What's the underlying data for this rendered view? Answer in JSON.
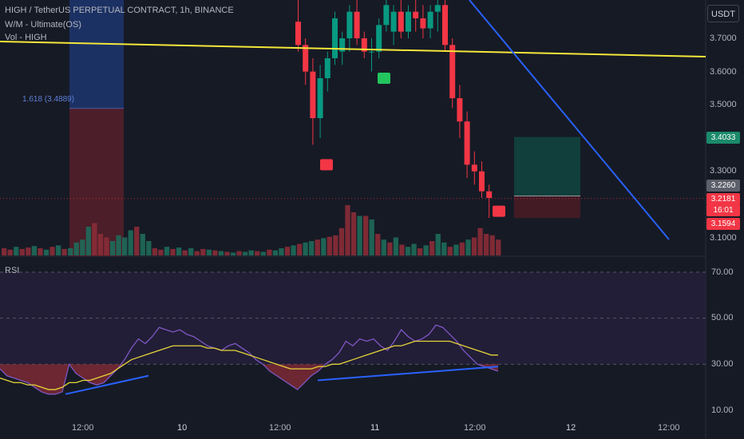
{
  "legend": {
    "symbol_line": "HIGH / TetherUS PERPETUAL CONTRACT, 1h, BINANCE",
    "indicator_1": "W/M - Ultimate(OS)",
    "indicator_2": "Vol - HIGH"
  },
  "currency_button": "USDT",
  "fib_label": "1.618 (3.4889)",
  "price_axis": {
    "ticks": [
      "3.7000",
      "3.6000",
      "3.5000",
      "3.3000",
      "3.1000"
    ],
    "tags": [
      {
        "text": "3.4033",
        "color": "#1b8a6b"
      },
      {
        "text": "3.2260",
        "color": "#5d606b"
      },
      {
        "text": "3.2181",
        "color": "#f23645"
      },
      {
        "text": "16:01",
        "color": "#f23645"
      },
      {
        "text": "3.1594",
        "color": "#f23645"
      }
    ]
  },
  "rsi": {
    "title": "RSI",
    "ticks": [
      "70.00",
      "50.00",
      "30.00",
      "10.00"
    ]
  },
  "time_axis": {
    "labels": [
      "12:00",
      "10",
      "12:00",
      "11",
      "12:00",
      "12",
      "12:00"
    ]
  },
  "colors": {
    "background": "#161a25",
    "bull": "#089981",
    "bear": "#f23645",
    "trendline_yellow": "#f5e73a",
    "trendline_blue": "#2962ff",
    "rsi_line": "#7e57c2",
    "rsi_ma": "#e6d43a"
  },
  "chart_data": [
    {
      "type": "candlestick",
      "title": "HIGH / TetherUS PERPETUAL CONTRACT, 1h, BINANCE",
      "y_range": [
        3.07,
        3.82
      ],
      "price_levels": {
        "current": 3.2181,
        "target_zone_top": 3.4033,
        "entry": 3.226,
        "stop": 3.1594,
        "fib_1618": 3.4889
      },
      "candles_ohlc": [
        [
          3.75,
          3.82,
          3.66,
          3.68
        ],
        [
          3.68,
          3.7,
          3.56,
          3.6
        ],
        [
          3.6,
          3.64,
          3.38,
          3.46
        ],
        [
          3.46,
          3.62,
          3.4,
          3.58
        ],
        [
          3.58,
          3.66,
          3.54,
          3.64
        ],
        [
          3.64,
          3.78,
          3.62,
          3.76
        ],
        [
          3.66,
          3.72,
          3.62,
          3.7
        ],
        [
          3.7,
          3.8,
          3.66,
          3.78
        ],
        [
          3.78,
          3.82,
          3.68,
          3.7
        ],
        [
          3.7,
          3.72,
          3.64,
          3.66
        ],
        [
          3.66,
          3.7,
          3.6,
          3.66
        ],
        [
          3.66,
          3.76,
          3.64,
          3.74
        ],
        [
          3.74,
          3.82,
          3.72,
          3.8
        ],
        [
          3.72,
          3.8,
          3.68,
          3.78
        ],
        [
          3.78,
          3.82,
          3.7,
          3.72
        ],
        [
          3.72,
          3.8,
          3.7,
          3.78
        ],
        [
          3.78,
          3.82,
          3.72,
          3.76
        ],
        [
          3.76,
          3.8,
          3.7,
          3.73
        ],
        [
          3.73,
          3.8,
          3.7,
          3.78
        ],
        [
          3.78,
          3.82,
          3.72,
          3.8
        ],
        [
          3.8,
          3.82,
          3.66,
          3.68
        ],
        [
          3.68,
          3.7,
          3.49,
          3.52
        ],
        [
          3.52,
          3.56,
          3.4,
          3.45
        ],
        [
          3.45,
          3.48,
          3.28,
          3.32
        ],
        [
          3.32,
          3.36,
          3.26,
          3.3
        ],
        [
          3.3,
          3.33,
          3.22,
          3.24
        ],
        [
          3.24,
          3.26,
          3.16,
          3.22
        ]
      ],
      "signals": [
        {
          "type": "sell",
          "price": 3.32
        },
        {
          "type": "buy",
          "price": 3.58
        },
        {
          "type": "sell",
          "price": 3.18
        }
      ],
      "volume": [
        [
          0.1,
          0
        ],
        [
          0.08,
          0
        ],
        [
          0.12,
          1
        ],
        [
          0.09,
          0
        ],
        [
          0.11,
          0
        ],
        [
          0.13,
          1
        ],
        [
          0.1,
          0
        ],
        [
          0.08,
          1
        ],
        [
          0.12,
          0
        ],
        [
          0.14,
          1
        ],
        [
          0.09,
          0
        ],
        [
          0.1,
          1
        ],
        [
          0.18,
          1
        ],
        [
          0.22,
          1
        ],
        [
          0.4,
          1
        ],
        [
          0.45,
          0
        ],
        [
          0.3,
          0
        ],
        [
          0.25,
          0
        ],
        [
          0.2,
          1
        ],
        [
          0.28,
          1
        ],
        [
          0.25,
          1
        ],
        [
          0.35,
          1
        ],
        [
          0.4,
          0
        ],
        [
          0.3,
          1
        ],
        [
          0.2,
          1
        ],
        [
          0.1,
          0
        ],
        [
          0.08,
          0
        ],
        [
          0.12,
          1
        ],
        [
          0.09,
          0
        ],
        [
          0.11,
          1
        ],
        [
          0.07,
          0
        ],
        [
          0.1,
          1
        ],
        [
          0.06,
          0
        ],
        [
          0.09,
          0
        ],
        [
          0.08,
          1
        ],
        [
          0.07,
          0
        ],
        [
          0.06,
          1
        ],
        [
          0.05,
          0
        ],
        [
          0.04,
          1
        ],
        [
          0.06,
          0
        ],
        [
          0.05,
          1
        ],
        [
          0.07,
          1
        ],
        [
          0.06,
          0
        ],
        [
          0.05,
          1
        ],
        [
          0.08,
          0
        ],
        [
          0.07,
          1
        ],
        [
          0.1,
          1
        ],
        [
          0.12,
          0
        ],
        [
          0.14,
          1
        ],
        [
          0.16,
          0
        ],
        [
          0.18,
          1
        ],
        [
          0.2,
          1
        ],
        [
          0.22,
          0
        ],
        [
          0.24,
          1
        ],
        [
          0.26,
          0
        ],
        [
          0.28,
          0
        ],
        [
          0.38,
          0
        ],
        [
          0.7,
          0
        ],
        [
          0.6,
          0
        ],
        [
          0.55,
          1
        ],
        [
          0.55,
          0
        ],
        [
          0.5,
          1
        ],
        [
          0.3,
          0
        ],
        [
          0.22,
          1
        ],
        [
          0.18,
          0
        ],
        [
          0.25,
          1
        ],
        [
          0.15,
          0
        ],
        [
          0.12,
          1
        ],
        [
          0.16,
          1
        ],
        [
          0.1,
          0
        ],
        [
          0.14,
          1
        ],
        [
          0.2,
          0
        ],
        [
          0.3,
          1
        ],
        [
          0.18,
          1
        ],
        [
          0.12,
          0
        ],
        [
          0.15,
          1
        ],
        [
          0.18,
          0
        ],
        [
          0.22,
          1
        ],
        [
          0.25,
          0
        ],
        [
          0.38,
          0
        ],
        [
          0.3,
          0
        ],
        [
          0.28,
          0
        ],
        [
          0.22,
          0
        ]
      ]
    },
    {
      "type": "line",
      "title": "RSI",
      "ylim": [
        10,
        70
      ],
      "series": [
        {
          "values": [
            28,
            25,
            24,
            23,
            22,
            20,
            18,
            17,
            17,
            18,
            30,
            26,
            24,
            22,
            21,
            22,
            25,
            28,
            32,
            37,
            41,
            39,
            42,
            46,
            45,
            44,
            45,
            43,
            42,
            40,
            38,
            37,
            36,
            38,
            39,
            37,
            35,
            32,
            30,
            27,
            25,
            23,
            21,
            19,
            22,
            25,
            27,
            30,
            32,
            35,
            40,
            38,
            41,
            40,
            41,
            38,
            36,
            40,
            45,
            42,
            40,
            41,
            43,
            47,
            46,
            43,
            40,
            36,
            33,
            30,
            29,
            28,
            27
          ]
        },
        {
          "values": [
            24,
            23,
            22,
            22,
            21,
            21,
            20,
            19,
            19,
            20,
            22,
            22,
            23,
            23,
            24,
            25,
            26,
            28,
            30,
            32,
            33,
            34,
            35,
            36,
            37,
            38,
            38,
            38,
            38,
            38,
            37,
            37,
            36,
            36,
            36,
            35,
            34,
            33,
            32,
            31,
            30,
            29,
            28,
            28,
            28,
            28,
            29,
            29,
            30,
            30,
            31,
            32,
            33,
            34,
            35,
            36,
            37,
            38,
            38,
            39,
            40,
            40,
            40,
            40,
            40,
            40,
            39,
            38,
            37,
            36,
            35,
            34,
            34
          ]
        }
      ]
    }
  ]
}
